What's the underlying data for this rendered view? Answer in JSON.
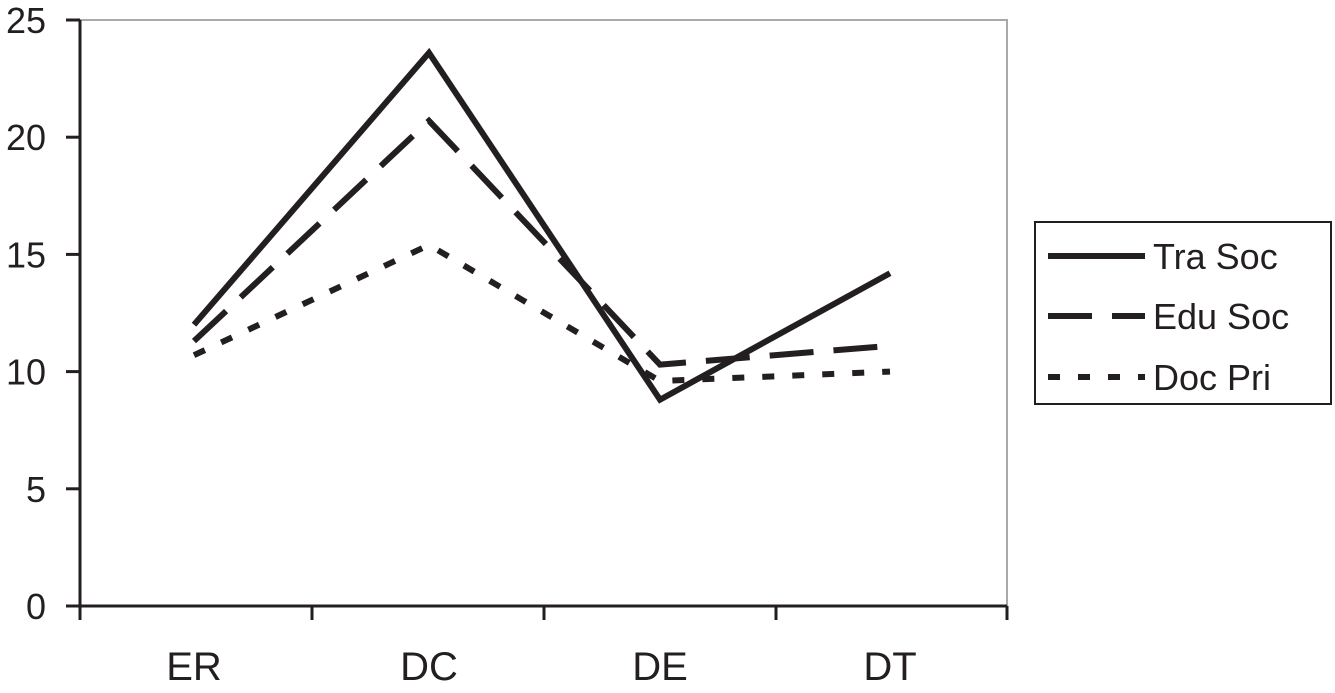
{
  "chart_data": {
    "type": "line",
    "title": "",
    "xlabel": "",
    "ylabel": "",
    "categories": [
      "ER",
      "DC",
      "DE",
      "DT"
    ],
    "yticks": [
      "0",
      "5",
      "10",
      "15",
      "20",
      "25"
    ],
    "ylim": [
      0,
      25
    ],
    "grid": false,
    "legend_position": "right",
    "series": [
      {
        "name": "Tra Soc",
        "style": "solid",
        "values": [
          12.0,
          23.6,
          8.8,
          14.2
        ]
      },
      {
        "name": "Edu Soc",
        "style": "dashed",
        "values": [
          11.3,
          20.7,
          10.3,
          11.1
        ]
      },
      {
        "name": "Doc Pri",
        "style": "dotted",
        "values": [
          10.7,
          15.4,
          9.6,
          10.0
        ]
      }
    ],
    "colors": {
      "line": "#231f20",
      "axis": "#231f20",
      "frame": "#a7a9ac",
      "background": "#ffffff"
    }
  }
}
